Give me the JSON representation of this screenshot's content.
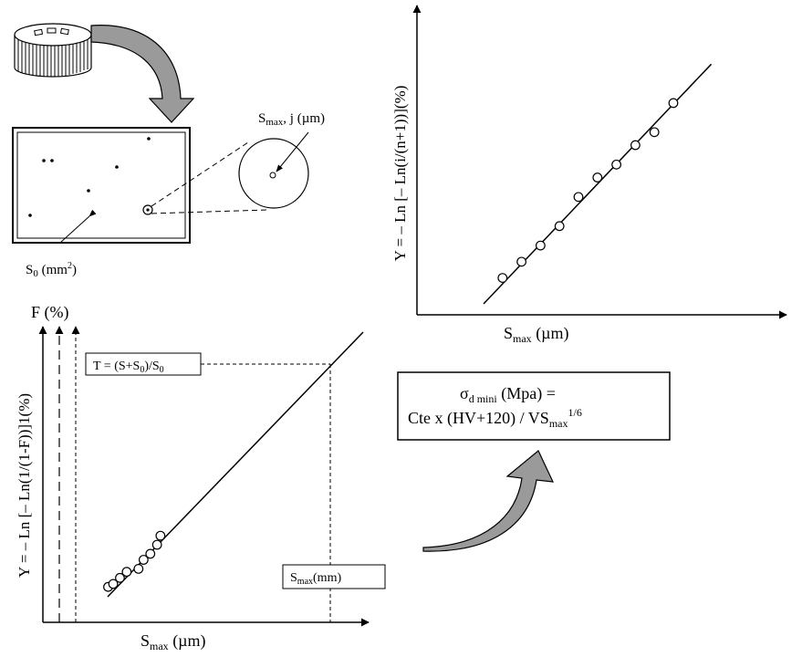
{
  "specimen": {
    "area_label": {
      "main": "S",
      "sub": "0",
      "unit_open": " (mm",
      "sup": "2",
      "unit_close": ")"
    },
    "inclusion_label": {
      "main": "S",
      "sub": "max",
      "rest": ", j (µm)"
    }
  },
  "top_chart": {
    "ylabel": "Y = – Ln [– Ln(i/(n+1))](%)",
    "xlabel": {
      "main": "S",
      "sub": "max",
      "rest": " (µm)"
    },
    "points": [
      [
        1,
        0.8
      ],
      [
        2,
        1.3
      ],
      [
        3,
        1.8
      ],
      [
        4,
        2.4
      ],
      [
        5,
        3.3
      ],
      [
        6,
        3.9
      ],
      [
        7,
        4.3
      ],
      [
        8,
        4.9
      ],
      [
        9,
        5.3
      ],
      [
        10,
        6.2
      ]
    ],
    "fit_line": [
      [
        0,
        0
      ],
      [
        12,
        7.4
      ]
    ]
  },
  "bottom_chart": {
    "ylabel": "Y = – Ln [– Ln(1/(1-F))]1(%)",
    "f_axis_label": "F (%)",
    "xlabel": {
      "main": "S",
      "sub": "max",
      "rest": " (µm)"
    },
    "t_box": {
      "pre": "T = (S+S",
      "sub": "0",
      "mid": ")/S",
      "sub2": "0"
    },
    "smax_box": {
      "main": "S",
      "sub": "max",
      "rest": "(mm)"
    },
    "points": [
      [
        1,
        0.6
      ],
      [
        1.3,
        0.7
      ],
      [
        1.7,
        0.9
      ],
      [
        2.1,
        1.1
      ],
      [
        2.8,
        1.2
      ],
      [
        3.1,
        1.5
      ],
      [
        3.5,
        1.7
      ],
      [
        3.9,
        2.0
      ],
      [
        4.1,
        2.3
      ]
    ]
  },
  "formula": {
    "line1": {
      "sigma": "σ",
      "sub": "d mini",
      "rest": " (Mpa) ="
    },
    "line2": {
      "pre": "Cte x (HV+120) / VS",
      "sub": "max",
      "sup": "1/6"
    }
  },
  "colors": {
    "ink": "#000000",
    "arrow_fill": "#9a9a9a",
    "paper": "#ffffff"
  }
}
